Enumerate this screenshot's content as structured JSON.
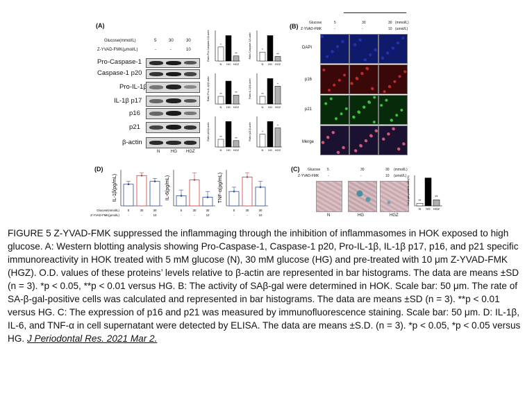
{
  "panelA": {
    "label": "(A)",
    "header_rows": [
      {
        "label": "Glucose(mmol/L)",
        "values": [
          "5",
          "30",
          "30"
        ]
      },
      {
        "label": "Z-YVAD-FMK(μmol/L)",
        "values": [
          "-",
          "-",
          "10"
        ]
      }
    ],
    "proteins": [
      "Pro-Caspase-1",
      "Caspase-1 p20",
      "Pro-IL-1β",
      "IL-1β p17",
      "p16",
      "p21",
      "β-actin"
    ],
    "groups": [
      "N",
      "HG",
      "HGZ"
    ]
  },
  "panelB": {
    "label": "(B)",
    "header_rows": [
      {
        "label": "Glucose",
        "values": [
          "5",
          "30",
          "30"
        ],
        "unit": "(mmol/L)"
      },
      {
        "label": "Z-YVAD-FMK",
        "values": [
          "-",
          "-",
          "10"
        ],
        "unit": "(umol/L)"
      }
    ],
    "rows": [
      "DAPI",
      "p16",
      "p21",
      "Merge"
    ]
  },
  "panelC": {
    "label": "(C)",
    "header_rows": [
      {
        "label": "Glucose",
        "values": [
          "5",
          "30",
          "30"
        ],
        "unit": "(mmol/L)"
      },
      {
        "label": "Z-YVAD-FMK",
        "values": [
          "-",
          "-",
          "10"
        ],
        "unit": "(umol/L)"
      }
    ],
    "groups": [
      "N",
      "HG",
      "HGZ"
    ]
  },
  "panelD": {
    "label": "(D)",
    "row_labels": [
      "Glucose(mmol/L)",
      "Z-YVAD-FMK(μmol/L)"
    ],
    "glucose": [
      "5",
      "30",
      "30"
    ],
    "zyvad": [
      "-",
      "-",
      "10"
    ]
  },
  "chart_data": [
    {
      "type": "bar",
      "panel": "A",
      "ylabel": "Ratio Pro-Caspase-1/β-actin",
      "categories": [
        "N",
        "HG",
        "HGZ"
      ],
      "values": [
        0.55,
        1.0,
        0.2
      ],
      "markers": [
        "*",
        "",
        "**"
      ]
    },
    {
      "type": "bar",
      "panel": "A",
      "ylabel": "Ratio Caspase-1/β-actin",
      "categories": [
        "N",
        "HG",
        "HGZ"
      ],
      "values": [
        0.35,
        1.0,
        0.18
      ],
      "markers": [
        "*",
        "",
        "**"
      ]
    },
    {
      "type": "bar",
      "panel": "A",
      "ylabel": "Ratio Pro-IL-1β/β-actin",
      "categories": [
        "N",
        "HG",
        "HGZ"
      ],
      "values": [
        0.3,
        0.9,
        0.35
      ],
      "markers": [
        "**",
        "",
        "**"
      ]
    },
    {
      "type": "bar",
      "panel": "A",
      "ylabel": "Ratio IL-1β/β-actin",
      "categories": [
        "N",
        "HG",
        "HGZ"
      ],
      "values": [
        0.3,
        1.0,
        0.7
      ],
      "markers": [
        "**",
        "",
        "*"
      ]
    },
    {
      "type": "bar",
      "panel": "A",
      "ylabel": "Ratio p16/β-actin",
      "categories": [
        "N",
        "HG",
        "HGZ"
      ],
      "values": [
        0.3,
        1.0,
        0.25
      ],
      "markers": [
        "**",
        "",
        "**"
      ]
    },
    {
      "type": "bar",
      "panel": "A",
      "ylabel": "Ratio p21/β-actin",
      "categories": [
        "N",
        "HG",
        "HGZ"
      ],
      "values": [
        0.5,
        1.0,
        0.75
      ],
      "markers": [
        "*",
        "",
        "*"
      ]
    },
    {
      "type": "bar",
      "panel": "C",
      "ylabel": "SA-β-gal-positive cells(%)",
      "categories": [
        "N",
        "HG",
        "HGZ"
      ],
      "values": [
        5,
        55,
        12
      ],
      "markers": [
        "**",
        "",
        "**"
      ]
    },
    {
      "type": "bar",
      "panel": "D",
      "ylabel": "IL-1β(pg/mL)",
      "categories": [
        "5/-",
        "30/-",
        "30/10"
      ],
      "values": [
        30,
        42,
        34
      ],
      "errors": [
        4,
        4,
        4
      ],
      "colors": [
        "#2a4f9c",
        "#d33c3c",
        "#2a4f9c"
      ]
    },
    {
      "type": "bar",
      "panel": "D",
      "ylabel": "IL-6(pg/mL)",
      "categories": [
        "5/-",
        "30/-",
        "30/10"
      ],
      "values": [
        14,
        36,
        12
      ],
      "errors": [
        8,
        10,
        8
      ],
      "colors": [
        "#2a4f9c",
        "#d33c3c",
        "#2a4f9c"
      ]
    },
    {
      "type": "bar",
      "panel": "D",
      "ylabel": "TNF-α(pg/mL)",
      "categories": [
        "5/-",
        "30/-",
        "30/10"
      ],
      "values": [
        20,
        40,
        26
      ],
      "errors": [
        6,
        6,
        8
      ],
      "colors": [
        "#2a4f9c",
        "#d33c3c",
        "#2a4f9c"
      ]
    }
  ],
  "caption": {
    "text": "FIGURE 5   Z-YVAD-FMK suppressed the inflammaging through the inhibition of inflammasomes in HOK exposed to high glucose. A: Western blotting analysis showing Pro-Caspase-1, Caspase-1 p20, Pro-IL-1β, IL-1β p17, p16, and p21 specific immunoreactivity in HOK treated with 5 mM glucose (N), 30 mM glucose (HG) and pre-treated with 10 μm Z-YVAD-FMK (HGZ). O.D. values of these proteins’ levels relative to β-actin are represented in bar histograms. The data are means ±SD (n = 3). *p < 0.05, **p < 0.01 versus HG. B: The activity of SAβ-gal were determined in HOK. Scale bar: 50 μm. The rate of SA-β-gal-positive cells was calculated and represented in bar histograms. The data are means ±SD (n = 3). **p < 0.01 versus HG. C: The expression of p16 and p21 was measured by immunofluorescence staining. Scale bar: 50 μm. D: IL-1β, IL-6, and TNF-α in cell supernatant were detected by ELISA. The data are means ±S.D. (n = 3). *p < 0.05, *p < 0.05 versus HG.",
    "citation": "J Periodontal Res. 2021 Mar 2."
  },
  "colors": {
    "black_bar": "#000000",
    "grey_bar": "#b0b0b0",
    "red": "#d33c3c",
    "blue": "#2a4f9c"
  }
}
